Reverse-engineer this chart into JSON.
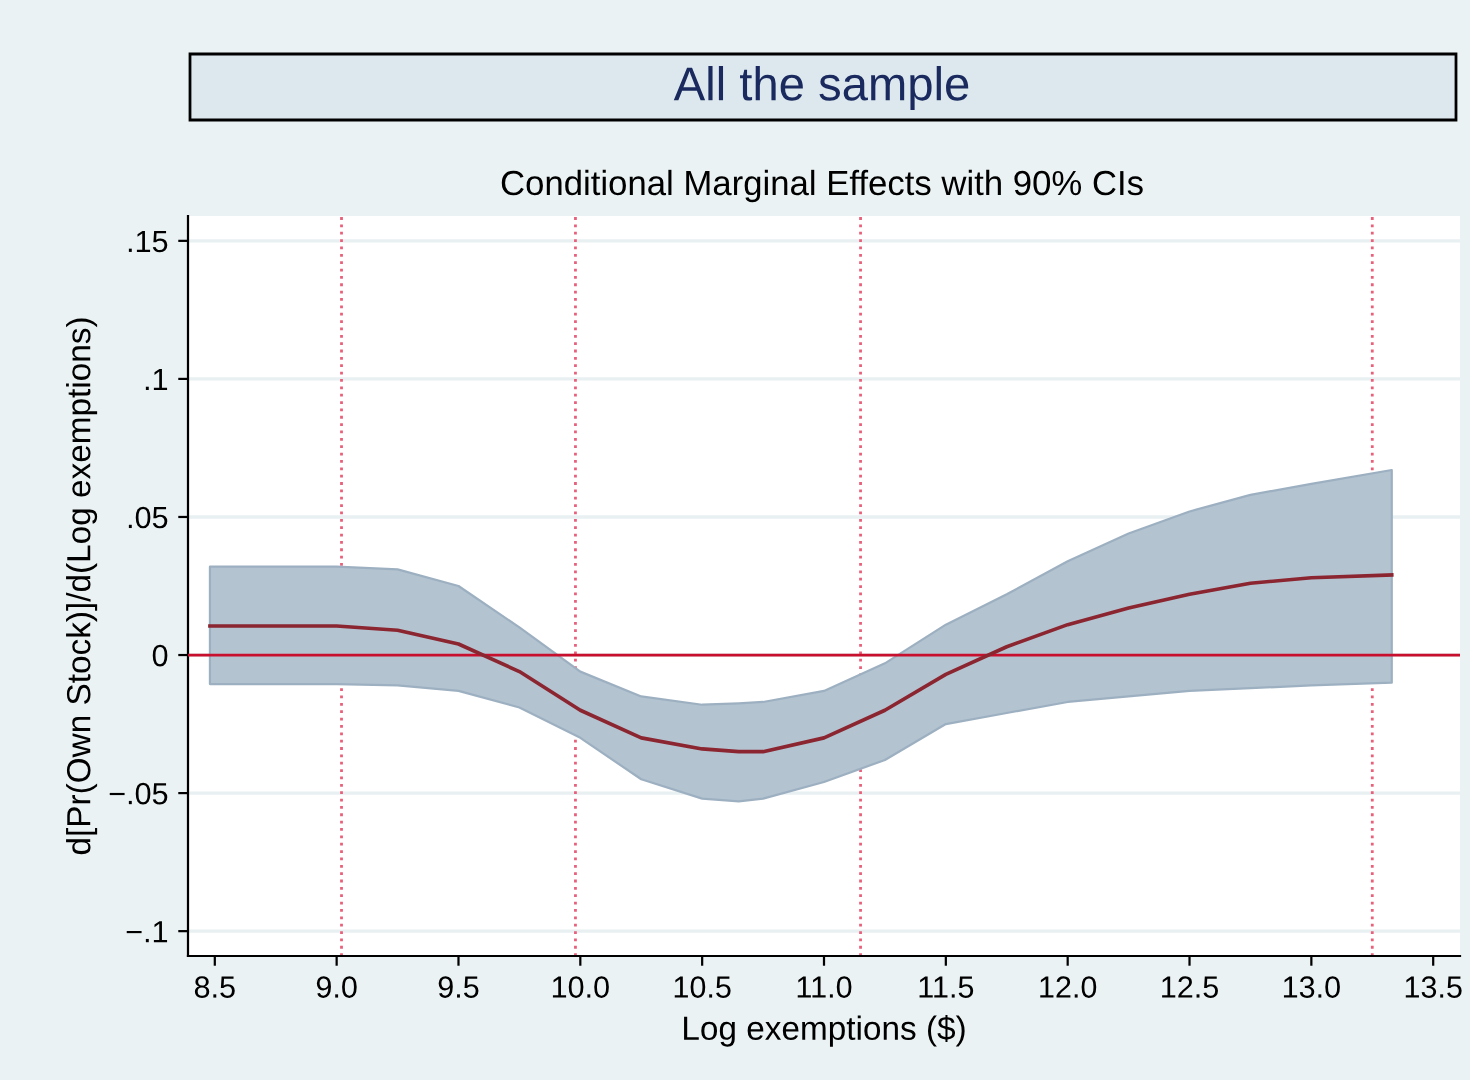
{
  "chart_data": {
    "type": "line",
    "title": "All the sample",
    "subtitle": "Conditional Marginal Effects with 90% CIs",
    "xlabel": "Log exemptions ($)",
    "ylabel": "d[Pr(Own Stock)]/d(Log exemptions)",
    "x": [
      8.48,
      9.0,
      9.25,
      9.5,
      9.75,
      10.0,
      10.25,
      10.5,
      10.65,
      10.75,
      11.0,
      11.25,
      11.5,
      11.75,
      12.0,
      12.25,
      12.5,
      12.75,
      13.0,
      13.33
    ],
    "series": [
      {
        "color": "#8b2530",
        "values": [
          0.0105,
          0.0105,
          0.009,
          0.004,
          -0.006,
          -0.02,
          -0.03,
          -0.034,
          -0.035,
          -0.035,
          -0.03,
          -0.02,
          -0.007,
          0.003,
          0.011,
          0.017,
          0.022,
          0.026,
          0.028,
          0.029
        ],
        "lower": [
          -0.0105,
          -0.0105,
          -0.011,
          -0.013,
          -0.019,
          -0.03,
          -0.045,
          -0.052,
          -0.053,
          -0.052,
          -0.046,
          -0.038,
          -0.025,
          -0.021,
          -0.017,
          -0.015,
          -0.013,
          -0.012,
          -0.011,
          -0.01
        ],
        "upper": [
          0.032,
          0.032,
          0.031,
          0.025,
          0.01,
          -0.006,
          -0.015,
          -0.018,
          -0.0175,
          -0.017,
          -0.013,
          -0.003,
          0.011,
          0.022,
          0.034,
          0.044,
          0.052,
          0.058,
          0.062,
          0.067
        ]
      }
    ],
    "xlim": [
      8.39,
      13.61
    ],
    "ylim": [
      -0.109,
      0.159
    ],
    "xticks": [
      {
        "value": 8.5,
        "label": "8.5"
      },
      {
        "value": 9,
        "label": "9.0"
      },
      {
        "value": 9.5,
        "label": "9.5"
      },
      {
        "value": 10,
        "label": "10.0"
      },
      {
        "value": 10.5,
        "label": "10.5"
      },
      {
        "value": 11,
        "label": "11.0"
      },
      {
        "value": 11.5,
        "label": "11.5"
      },
      {
        "value": 12,
        "label": "12.0"
      },
      {
        "value": 12.5,
        "label": "12.5"
      },
      {
        "value": 13,
        "label": "13.0"
      },
      {
        "value": 13.5,
        "label": "13.5"
      }
    ],
    "yticks": [
      {
        "value": -0.1,
        "label": "−.1"
      },
      {
        "value": -0.05,
        "label": "−.05"
      },
      0,
      {
        "value": 0.05,
        "label": ".05"
      },
      {
        "value": 0.1,
        "label": ".1"
      },
      {
        "value": 0.15,
        "label": ".15"
      }
    ],
    "ref_lines": [
      {
        "axis": "y",
        "value": 0,
        "color": "#c8102e",
        "line_style": "solid"
      },
      {
        "axis": "x",
        "value": 9.02,
        "color": "#e8607a",
        "line_style": "dotted"
      },
      {
        "axis": "x",
        "value": 9.98,
        "color": "#e8607a",
        "line_style": "dotted"
      },
      {
        "axis": "x",
        "value": 11.15,
        "color": "#e8607a",
        "line_style": "dotted"
      },
      {
        "axis": "x",
        "value": 13.25,
        "color": "#e8607a",
        "line_style": "dotted"
      }
    ],
    "grid": "y",
    "legend": false,
    "marker": "none",
    "line_style": "solid"
  }
}
